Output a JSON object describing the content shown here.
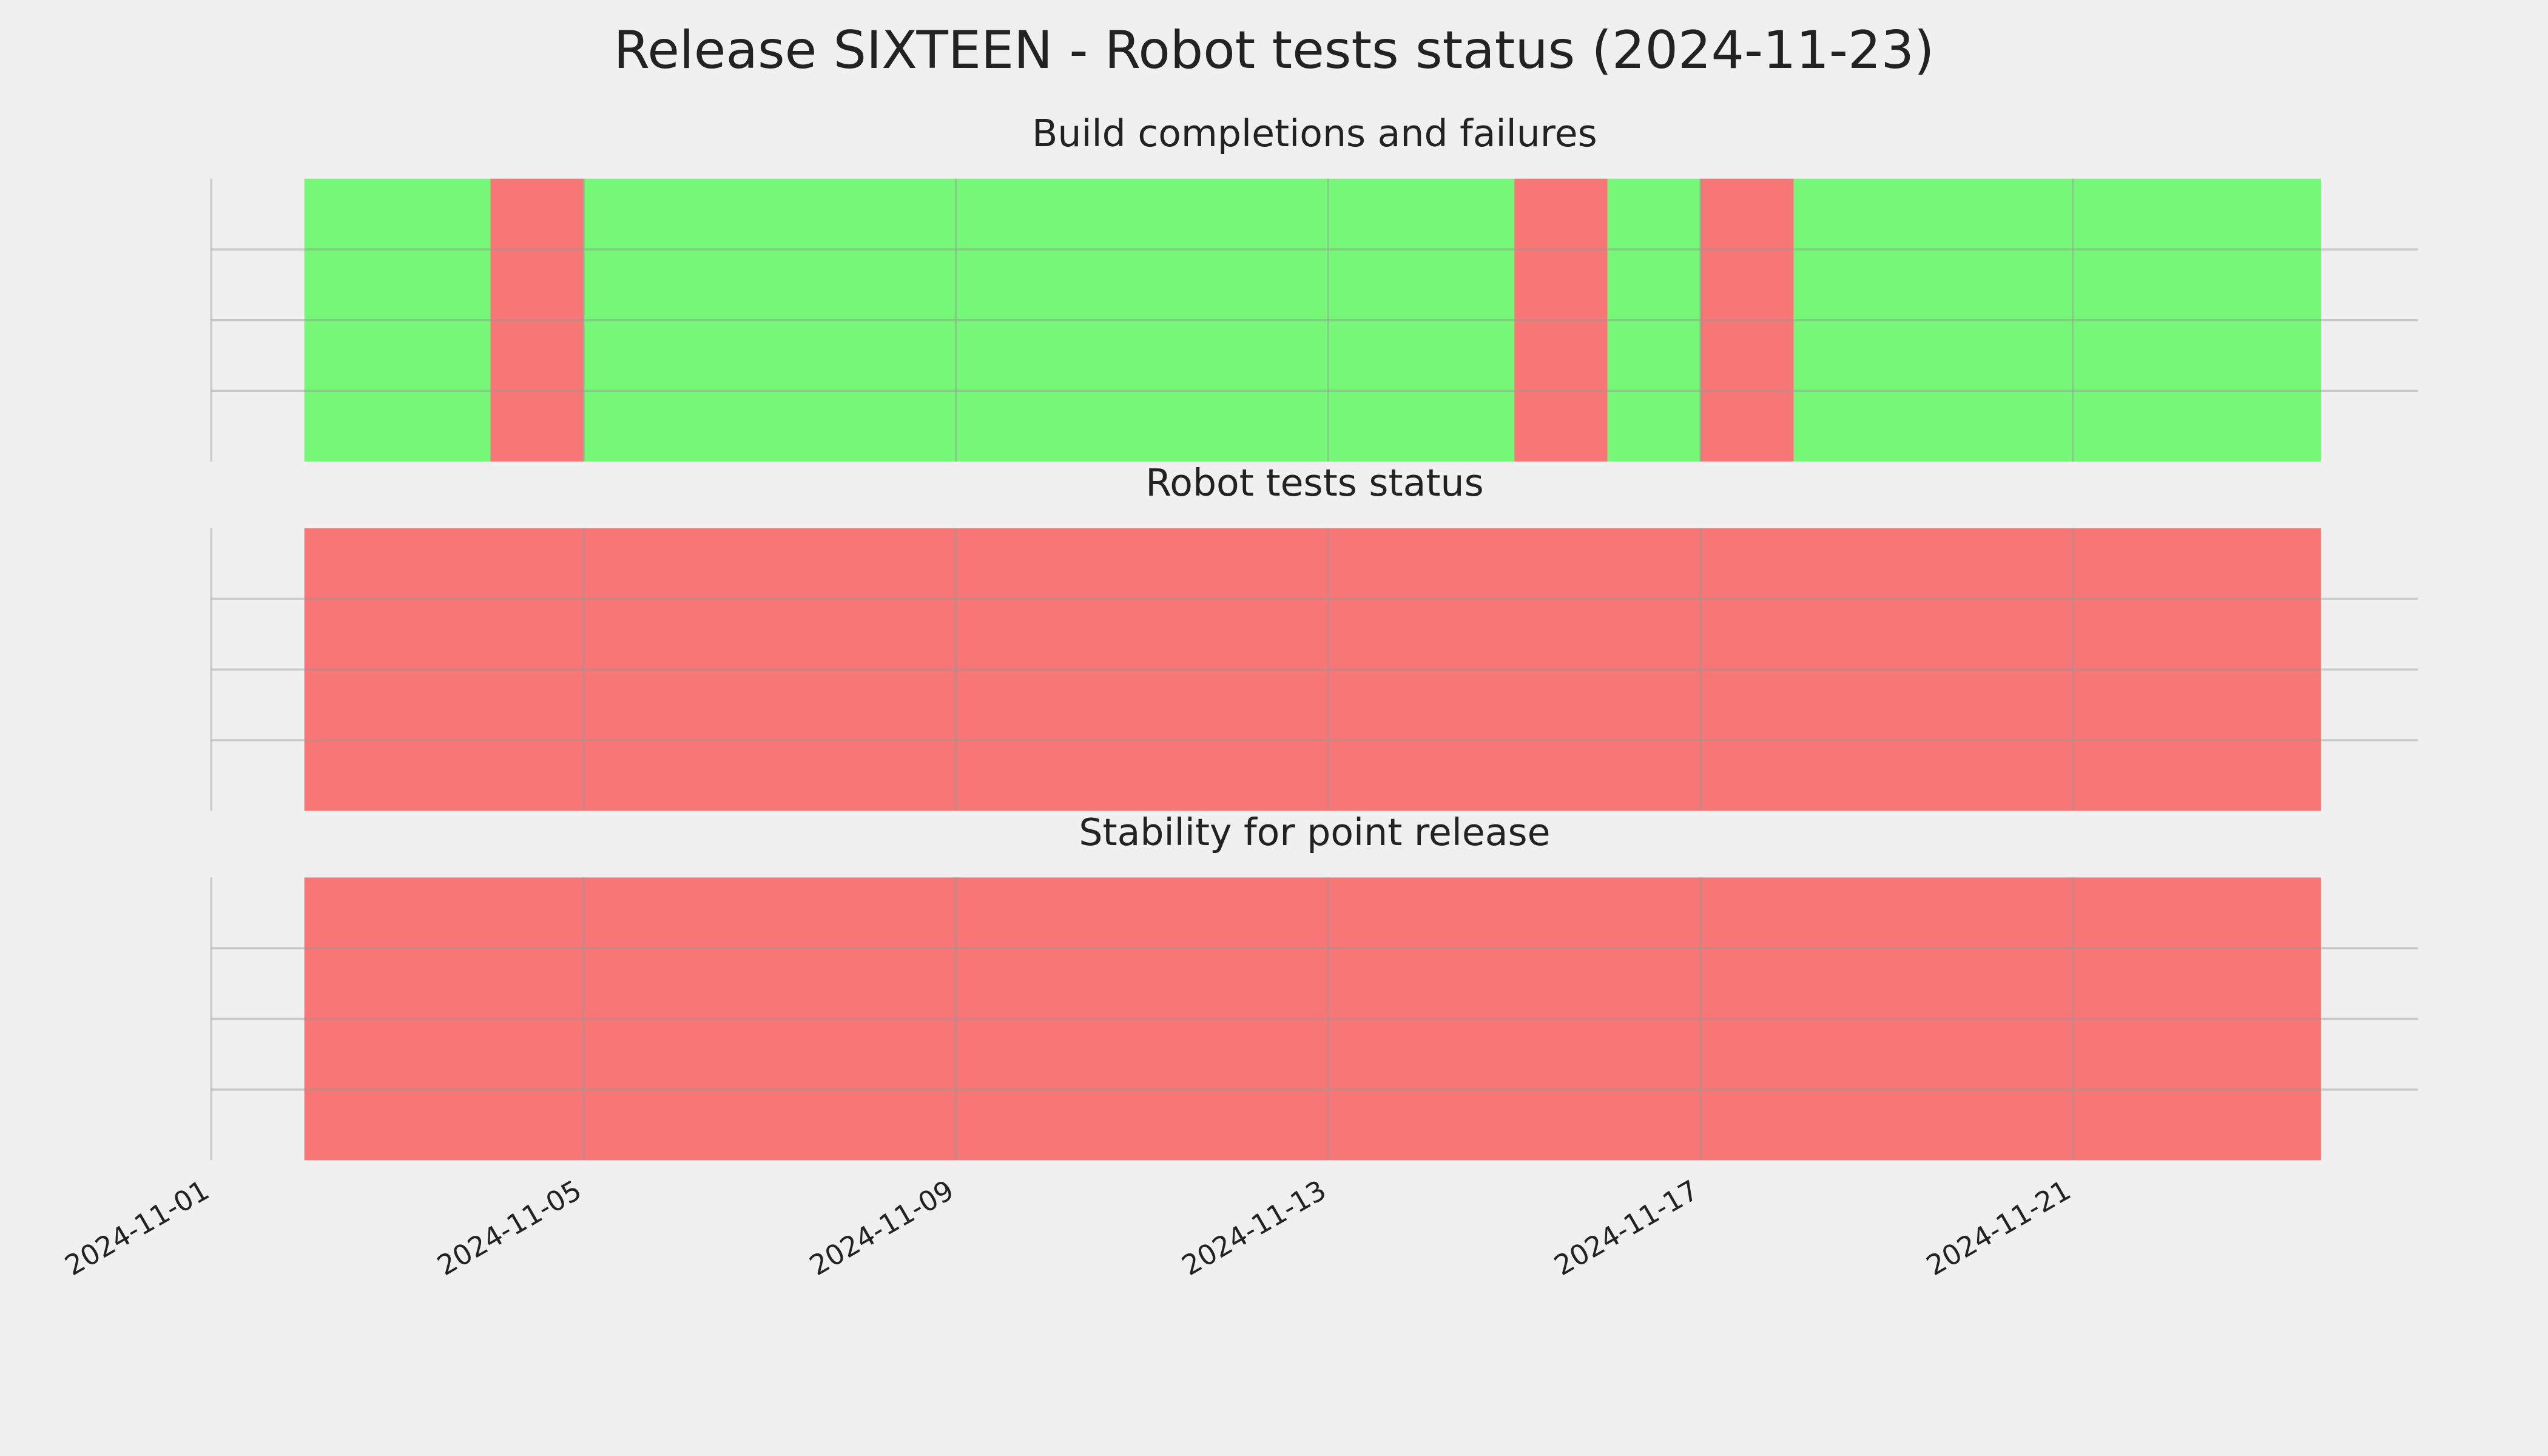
{
  "title": "Release SIXTEEN - Robot tests status (2024-11-23)",
  "chart_data": [
    {
      "type": "timeline",
      "title": "Build completions and failures",
      "bins": [
        "2024-11-02",
        "2024-11-04",
        "2024-11-05",
        "2024-11-15",
        "2024-11-16",
        "2024-11-17",
        "2024-11-18",
        "2024-11-23T16:00"
      ],
      "colors": [
        "#77f777",
        "#f77777",
        "#77f777",
        "#f77777",
        "#77f777",
        "#f77777",
        "#77f777"
      ],
      "xlim": [
        "2024-11-01",
        "2024-11-24T17:00"
      ],
      "ylim": [
        0,
        1
      ],
      "yticks": [
        0.25,
        0.5,
        0.75
      ],
      "xticks": [
        "2024-11-01",
        "2024-11-05",
        "2024-11-09",
        "2024-11-13",
        "2024-11-17",
        "2024-11-21"
      ],
      "grid": true
    },
    {
      "type": "timeline",
      "title": "Robot tests status",
      "bins": [
        "2024-11-02",
        "2024-11-23T16:00"
      ],
      "colors": [
        "#f77777"
      ],
      "xlim": [
        "2024-11-01",
        "2024-11-24T17:00"
      ],
      "ylim": [
        0,
        1
      ],
      "yticks": [
        0.25,
        0.5,
        0.75
      ],
      "xticks": [
        "2024-11-01",
        "2024-11-05",
        "2024-11-09",
        "2024-11-13",
        "2024-11-17",
        "2024-11-21"
      ],
      "grid": true
    },
    {
      "type": "timeline",
      "title": "Stability for point release",
      "bins": [
        "2024-11-02",
        "2024-11-23T16:00"
      ],
      "colors": [
        "#f77777"
      ],
      "xlim": [
        "2024-11-01",
        "2024-11-24T17:00"
      ],
      "ylim": [
        0,
        1
      ],
      "yticks": [
        0.25,
        0.5,
        0.75
      ],
      "xticks": [
        "2024-11-01",
        "2024-11-05",
        "2024-11-09",
        "2024-11-13",
        "2024-11-17",
        "2024-11-21"
      ],
      "grid": true
    }
  ]
}
